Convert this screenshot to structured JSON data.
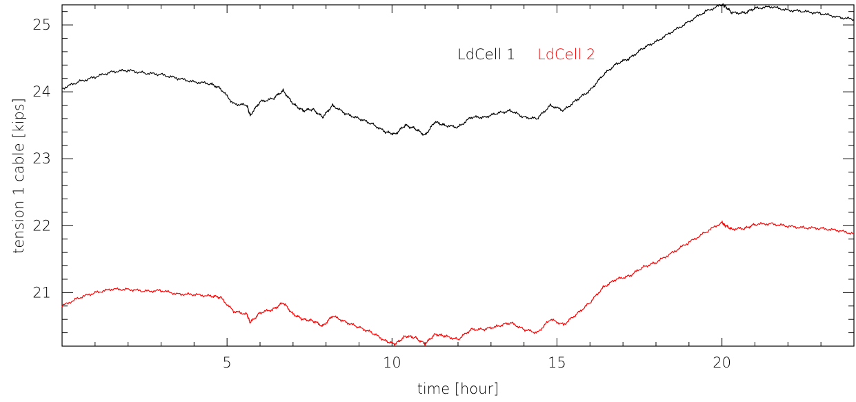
{
  "chart_data": {
    "type": "line",
    "title": "",
    "xlabel": "time [hour]",
    "ylabel": "tension 1 cable [kips]",
    "xlim": [
      0,
      24
    ],
    "ylim": [
      20.2,
      25.3
    ],
    "xticks": [
      5,
      10,
      15,
      20
    ],
    "yticks": [
      21,
      22,
      23,
      24,
      25
    ],
    "grid": false,
    "legend_position": "top-center",
    "series": [
      {
        "name": "LdCell 1",
        "color": "#000000",
        "x": [
          0,
          0.5,
          1.0,
          1.5,
          2.0,
          2.5,
          3.0,
          3.5,
          4.0,
          4.5,
          4.8,
          5.2,
          5.6,
          5.7,
          6.0,
          6.4,
          6.7,
          7.0,
          7.3,
          7.6,
          7.9,
          8.2,
          8.6,
          9.0,
          9.4,
          9.8,
          10.1,
          10.4,
          10.7,
          11.0,
          11.3,
          11.6,
          12.0,
          12.4,
          12.8,
          13.2,
          13.6,
          14.0,
          14.4,
          14.8,
          15.2,
          15.6,
          16.0,
          16.4,
          16.8,
          17.2,
          17.6,
          18.0,
          18.5,
          19.0,
          19.5,
          20.0,
          20.1,
          20.3,
          20.7,
          21.0,
          21.5,
          22.0,
          22.5,
          23.0,
          23.5,
          24.0
        ],
        "values": [
          24.05,
          24.15,
          24.22,
          24.3,
          24.32,
          24.28,
          24.26,
          24.2,
          24.15,
          24.12,
          24.05,
          23.82,
          23.8,
          23.65,
          23.85,
          23.9,
          24.02,
          23.82,
          23.72,
          23.74,
          23.62,
          23.8,
          23.67,
          23.6,
          23.52,
          23.4,
          23.37,
          23.5,
          23.45,
          23.35,
          23.55,
          23.5,
          23.47,
          23.62,
          23.62,
          23.68,
          23.72,
          23.62,
          23.6,
          23.8,
          23.72,
          23.88,
          24.02,
          24.25,
          24.42,
          24.5,
          24.65,
          24.75,
          24.9,
          25.05,
          25.2,
          25.3,
          25.28,
          25.18,
          25.18,
          25.25,
          25.27,
          25.22,
          25.2,
          25.17,
          25.12,
          25.08
        ]
      },
      {
        "name": "LdCell 2",
        "color": "#ff0000",
        "x": [
          0,
          0.5,
          1.0,
          1.5,
          2.0,
          2.5,
          3.0,
          3.5,
          4.0,
          4.5,
          4.8,
          5.2,
          5.6,
          5.7,
          6.0,
          6.4,
          6.7,
          7.0,
          7.3,
          7.6,
          7.9,
          8.2,
          8.6,
          9.0,
          9.4,
          9.8,
          10.1,
          10.4,
          10.7,
          11.0,
          11.3,
          11.6,
          12.0,
          12.4,
          12.8,
          13.2,
          13.6,
          14.0,
          14.4,
          14.8,
          15.2,
          15.6,
          16.0,
          16.4,
          16.8,
          17.2,
          17.6,
          18.0,
          18.5,
          19.0,
          19.5,
          20.0,
          20.1,
          20.3,
          20.7,
          21.0,
          21.5,
          22.0,
          22.5,
          23.0,
          23.5,
          24.0
        ],
        "values": [
          20.8,
          20.92,
          21.0,
          21.05,
          21.05,
          21.02,
          21.03,
          20.98,
          20.97,
          20.95,
          20.93,
          20.72,
          20.68,
          20.55,
          20.7,
          20.75,
          20.85,
          20.68,
          20.6,
          20.58,
          20.5,
          20.65,
          20.56,
          20.48,
          20.4,
          20.28,
          20.23,
          20.35,
          20.33,
          20.23,
          20.38,
          20.35,
          20.3,
          20.45,
          20.45,
          20.5,
          20.55,
          20.45,
          20.4,
          20.6,
          20.52,
          20.68,
          20.85,
          21.08,
          21.2,
          21.25,
          21.38,
          21.45,
          21.6,
          21.75,
          21.9,
          22.05,
          22.0,
          21.95,
          21.96,
          22.02,
          22.03,
          21.99,
          21.97,
          21.96,
          21.93,
          21.88
        ]
      }
    ]
  }
}
